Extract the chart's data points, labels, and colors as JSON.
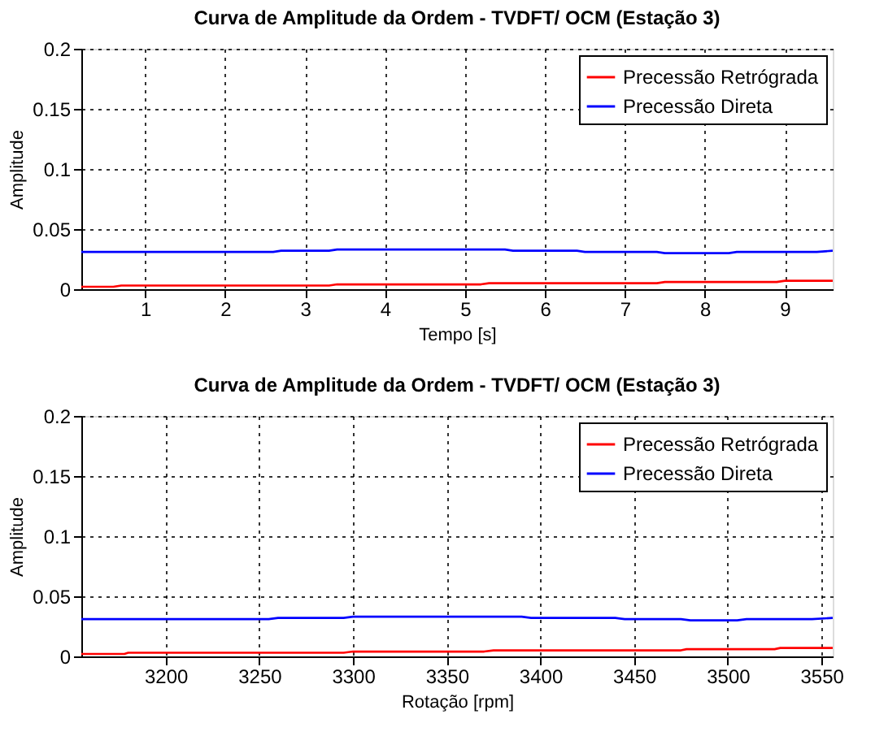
{
  "chart_data": [
    {
      "type": "line",
      "title": "Curva de Amplitude da Ordem - TVDFT/ OCM (Estação 3)",
      "xlabel": "Tempo [s]",
      "ylabel": "Amplitude",
      "xlim": [
        0.2,
        9.6
      ],
      "xticks": [
        1,
        2,
        3,
        4,
        5,
        6,
        7,
        8,
        9
      ],
      "ylim": [
        0,
        0.2
      ],
      "yticks": [
        0,
        0.05,
        0.1,
        0.15,
        0.2
      ],
      "grid": true,
      "legend": "top right",
      "line_style": "solid",
      "series": [
        {
          "name": "Precessão Retrógrada",
          "color": "#ff0000",
          "x": [
            0.2,
            0.6,
            0.7,
            3.3,
            3.4,
            5.2,
            5.3,
            7.4,
            7.5,
            8.9,
            9.0,
            9.6
          ],
          "values": [
            0.002,
            0.002,
            0.003,
            0.003,
            0.004,
            0.004,
            0.005,
            0.005,
            0.006,
            0.006,
            0.007,
            0.007
          ]
        },
        {
          "name": "Precessão Direta",
          "color": "#0000ff",
          "x": [
            0.2,
            2.6,
            2.7,
            3.3,
            3.4,
            5.5,
            5.6,
            6.4,
            6.5,
            7.4,
            7.5,
            8.3,
            8.4,
            9.4,
            9.6
          ],
          "values": [
            0.031,
            0.031,
            0.032,
            0.032,
            0.033,
            0.033,
            0.032,
            0.032,
            0.031,
            0.031,
            0.03,
            0.03,
            0.031,
            0.031,
            0.032
          ]
        }
      ]
    },
    {
      "type": "line",
      "title": "Curva de Amplitude da Ordem - TVDFT/ OCM (Estação 3)",
      "xlabel": "Rotação [rpm]",
      "ylabel": "Amplitude",
      "xlim": [
        3155,
        3556
      ],
      "xticks": [
        3200,
        3250,
        3300,
        3350,
        3400,
        3450,
        3500,
        3550
      ],
      "ylim": [
        0,
        0.2
      ],
      "yticks": [
        0,
        0.05,
        0.1,
        0.15,
        0.2
      ],
      "grid": true,
      "legend": "top right",
      "line_style": "solid",
      "series": [
        {
          "name": "Precessão Retrógrada",
          "color": "#ff0000",
          "x": [
            3155,
            3178,
            3180,
            3295,
            3300,
            3370,
            3375,
            3475,
            3478,
            3525,
            3528,
            3556
          ],
          "values": [
            0.002,
            0.002,
            0.003,
            0.003,
            0.004,
            0.004,
            0.005,
            0.005,
            0.006,
            0.006,
            0.007,
            0.007
          ]
        },
        {
          "name": "Precessão Direta",
          "color": "#0000ff",
          "x": [
            3155,
            3255,
            3260,
            3295,
            3300,
            3390,
            3395,
            3440,
            3445,
            3475,
            3480,
            3505,
            3510,
            3545,
            3556
          ],
          "values": [
            0.031,
            0.031,
            0.032,
            0.032,
            0.033,
            0.033,
            0.032,
            0.032,
            0.031,
            0.031,
            0.03,
            0.03,
            0.031,
            0.031,
            0.032
          ]
        }
      ]
    }
  ]
}
